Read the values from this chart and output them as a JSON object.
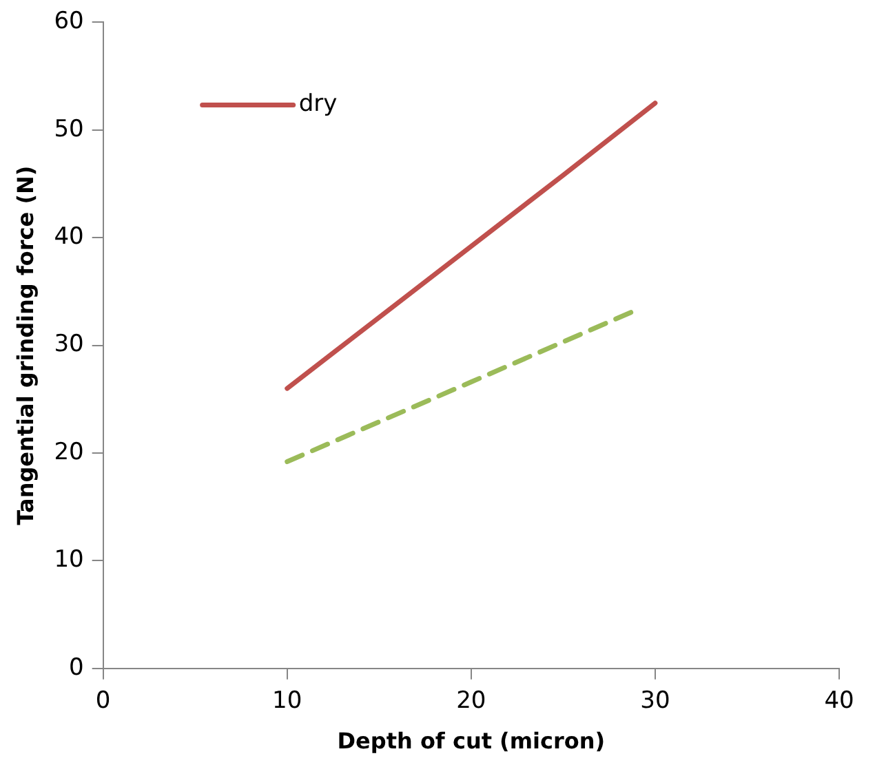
{
  "chart_data": {
    "type": "line",
    "xlabel": "Depth of cut (micron)",
    "ylabel": "Tangential grinding force (N)",
    "xlim": [
      0,
      40
    ],
    "xticks": [
      0,
      10,
      20,
      30,
      40
    ],
    "ylim": [
      0,
      60
    ],
    "yticks": [
      0,
      10,
      20,
      30,
      40,
      50,
      60
    ],
    "grid": false,
    "legend": "top left",
    "marker": "none",
    "series": [
      {
        "name": "dry",
        "color": "#c0504d",
        "line_style": "solid",
        "x": [
          10,
          15,
          20,
          25,
          30
        ],
        "values": [
          26,
          32.6,
          39.2,
          45.8,
          52.5
        ]
      },
      {
        "color": "#9bbb59",
        "line_style": "dashed",
        "x": [
          10,
          20,
          29
        ],
        "values": [
          19.2,
          26.6,
          33.3
        ]
      }
    ]
  }
}
